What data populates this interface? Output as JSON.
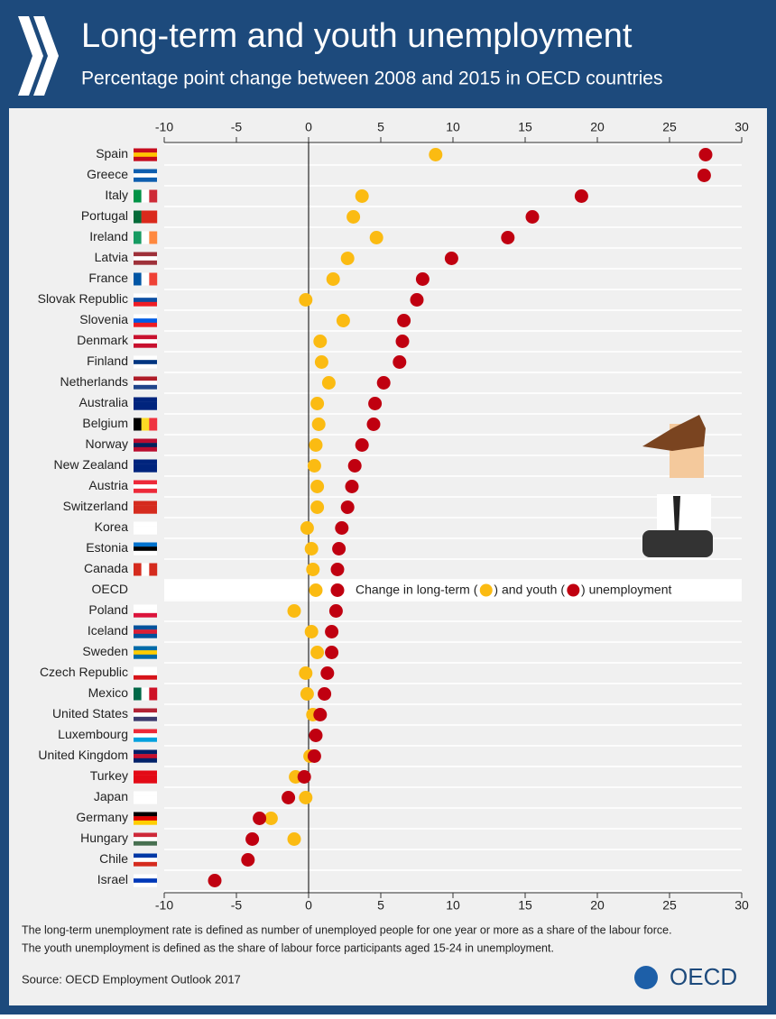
{
  "chart_data": {
    "type": "dot",
    "title": "Long-term and youth unemployment",
    "subtitle": "Percentage point change between 2008 and 2015 in OECD countries",
    "categories": [
      "Spain",
      "Greece",
      "Italy",
      "Portugal",
      "Ireland",
      "Latvia",
      "France",
      "Slovak Republic",
      "Slovenia",
      "Denmark",
      "Finland",
      "Netherlands",
      "Australia",
      "Belgium",
      "Norway",
      "New Zealand",
      "Austria",
      "Switzerland",
      "Korea",
      "Estonia",
      "Canada",
      "OECD",
      "Poland",
      "Iceland",
      "Sweden",
      "Czech Republic",
      "Mexico",
      "United States",
      "Luxembourg",
      "United Kingdom",
      "Turkey",
      "Japan",
      "Germany",
      "Hungary",
      "Chile",
      "Israel"
    ],
    "series": [
      {
        "name": "long-term",
        "color": "#fbbb12",
        "values": [
          8.8,
          null,
          3.7,
          3.1,
          4.7,
          2.7,
          1.7,
          -0.2,
          2.4,
          0.8,
          0.9,
          1.4,
          0.6,
          0.7,
          0.5,
          0.4,
          0.6,
          0.6,
          -0.1,
          0.2,
          0.3,
          0.5,
          -1.0,
          0.2,
          0.6,
          -0.2,
          -0.1,
          0.3,
          null,
          0.1,
          -0.9,
          -0.2,
          -2.6,
          -1.0,
          null,
          null
        ]
      },
      {
        "name": "youth",
        "color": "#c00010",
        "values": [
          27.5,
          27.4,
          18.9,
          15.5,
          13.8,
          9.9,
          7.9,
          7.5,
          6.6,
          6.5,
          6.3,
          5.2,
          4.6,
          4.5,
          3.7,
          3.2,
          3.0,
          2.7,
          2.3,
          2.1,
          2.0,
          2.0,
          1.9,
          1.6,
          1.6,
          1.3,
          1.1,
          0.8,
          0.5,
          0.4,
          -0.3,
          -1.4,
          -3.4,
          -3.9,
          -4.2,
          -6.5
        ]
      }
    ],
    "legend": [
      "Change in long-term (",
      ") and youth (",
      ") unemployment"
    ],
    "xlim": [
      -10,
      30
    ],
    "xticks": [
      -10,
      -5,
      0,
      5,
      10,
      15,
      20,
      25,
      30
    ],
    "grid": true,
    "notes": [
      "The long-term unemployment rate is defined as number of unemployed people for one year or more as a share of the labour force.",
      "The youth unemployment is defined as the share of labour force participants aged 15-24 in unemployment."
    ],
    "source": "Source: OECD Employment Outlook 2017",
    "logo": "OECD"
  }
}
